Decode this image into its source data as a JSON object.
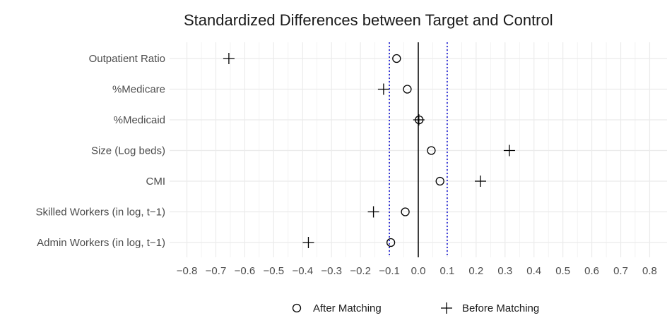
{
  "chart_data": {
    "type": "scatter",
    "title": "Standardized Differences between Target and Control",
    "xlabel": "",
    "ylabel": "",
    "xlim": [
      -0.86,
      0.86
    ],
    "x_ticks": [
      "-0.8",
      "-0.7",
      "-0.6",
      "-0.5",
      "-0.4",
      "-0.3",
      "-0.2",
      "-0.1",
      "0.0",
      "0.1",
      "0.2",
      "0.3",
      "0.4",
      "0.5",
      "0.6",
      "0.7",
      "0.8"
    ],
    "reference_lines": {
      "solid": 0.0,
      "dotted": [
        -0.1,
        0.1
      ]
    },
    "categories": [
      "Outpatient Ratio",
      "%Medicare",
      "%Medicaid",
      "Size (Log beds)",
      "CMI",
      "Skilled Workers (in log, t−1)",
      "Admin Workers (in log, t−1)"
    ],
    "series": [
      {
        "name": "After Matching",
        "marker": "circle",
        "values": [
          -0.075,
          -0.038,
          0.003,
          0.045,
          0.075,
          -0.045,
          -0.095
        ]
      },
      {
        "name": "Before Matching",
        "marker": "plus",
        "values": [
          -0.655,
          -0.12,
          0.002,
          0.315,
          0.215,
          -0.155,
          -0.38
        ]
      }
    ],
    "legend_position": "bottom",
    "grid": true,
    "colors": {
      "grid": "#ebebeb",
      "zero_line": "#000000",
      "ref_lines": "#0000cc",
      "marks": "#000000"
    }
  }
}
